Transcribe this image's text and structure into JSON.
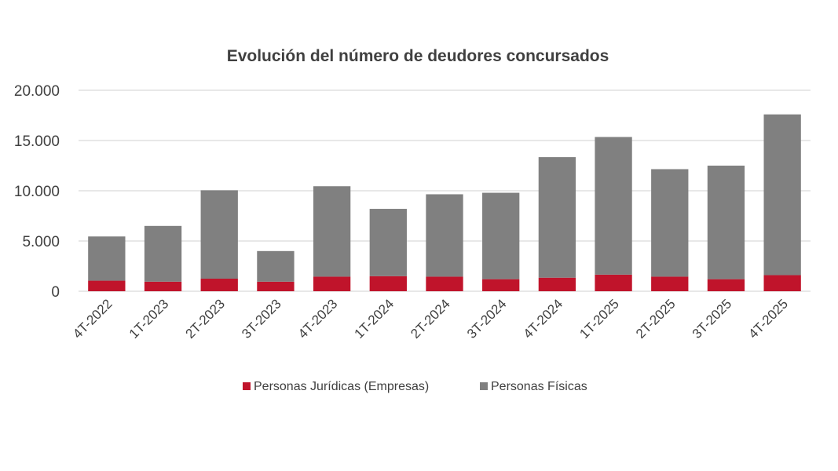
{
  "chart_data": {
    "type": "bar",
    "stacked": true,
    "title": "Evolución del número de deudores concursados",
    "xlabel": "",
    "ylabel": "",
    "ylim": [
      0,
      20000
    ],
    "yticks": [
      0,
      5000,
      10000,
      15000,
      20000
    ],
    "ytick_labels": [
      "0",
      "5.000",
      "10.000",
      "15.000",
      "20.000"
    ],
    "categories": [
      "4T-2022",
      "1T-2023",
      "2T-2023",
      "3T-2023",
      "4T-2023",
      "1T-2024",
      "2T-2024",
      "3T-2024",
      "4T-2024",
      "1T-2025",
      "2T-2025",
      "3T-2025",
      "4T-2025"
    ],
    "series": [
      {
        "name": "Personas Jurídicas (Empresas)",
        "color": "#c0142b",
        "values": [
          1050,
          950,
          1250,
          950,
          1450,
          1500,
          1450,
          1200,
          1350,
          1650,
          1450,
          1200,
          1600
        ]
      },
      {
        "name": "Personas Físicas",
        "color": "#808080",
        "values": [
          4400,
          5550,
          8800,
          3050,
          9000,
          6700,
          8200,
          8600,
          12000,
          13700,
          10700,
          11300,
          16000
        ]
      }
    ],
    "legend_position": "bottom",
    "grid": true
  }
}
